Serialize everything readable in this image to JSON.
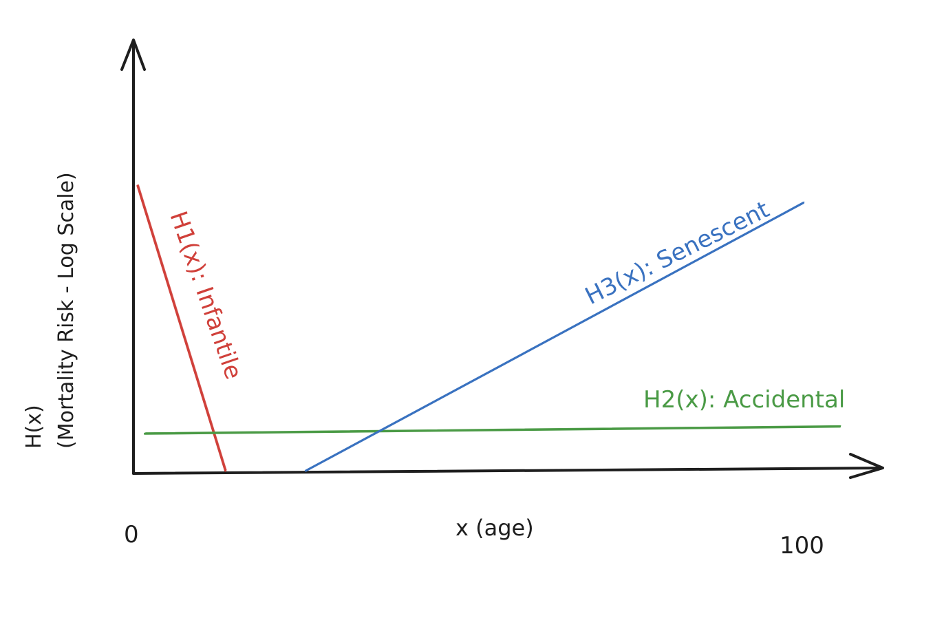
{
  "chart_data": {
    "type": "line",
    "title": "",
    "xlabel": "x (age)",
    "ylabel_line1": "H(x)",
    "ylabel_line2": "(Mortality Risk - Log Scale)",
    "xlim": [
      0,
      100
    ],
    "x_tick_labels": [
      "0",
      "100"
    ],
    "y_scale": "log",
    "grid": false,
    "legend": "none",
    "series": [
      {
        "name": "H1(x): Infantile",
        "color": "#d0403a",
        "x": [
          0,
          12
        ],
        "y_relative": [
          1.0,
          0.0
        ]
      },
      {
        "name": "H2(x): Accidental",
        "color": "#4a9a45",
        "x": [
          1,
          96
        ],
        "y_relative": [
          0.13,
          0.155
        ]
      },
      {
        "name": "H3(x): Senescent",
        "color": "#3a72c0",
        "x": [
          23,
          91
        ],
        "y_relative": [
          0.0,
          0.94
        ]
      }
    ]
  }
}
